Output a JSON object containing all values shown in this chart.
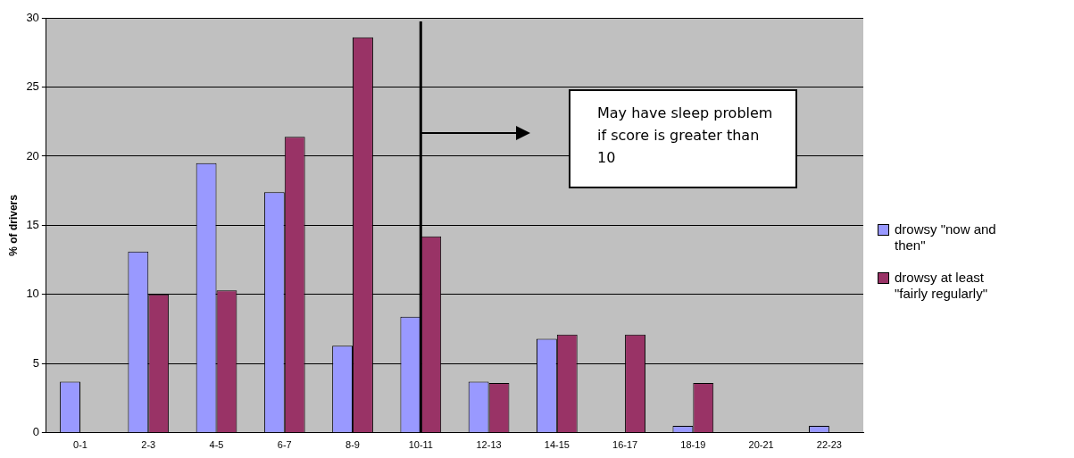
{
  "chart_data": {
    "type": "bar",
    "ylabel": "% of drivers",
    "categories": [
      "0-1",
      "2-3",
      "4-5",
      "6-7",
      "8-9",
      "10-11",
      "12-13",
      "14-15",
      "16-17",
      "18-19",
      "20-21",
      "22-23"
    ],
    "series": [
      {
        "name": "drowsy \"now and then\"",
        "color": "#9999ff",
        "values": [
          3.7,
          13.1,
          19.5,
          17.4,
          6.3,
          8.4,
          3.7,
          6.8,
          0,
          0.5,
          0,
          0.5
        ]
      },
      {
        "name": "drowsy at least \"fairly regularly\"",
        "color": "#993366",
        "values": [
          0,
          10,
          10.3,
          21.4,
          28.6,
          14.2,
          3.6,
          7.1,
          7.1,
          3.6,
          0,
          0
        ]
      }
    ],
    "ylim": [
      0,
      30
    ],
    "yticks": [
      0,
      5,
      10,
      15,
      20,
      25,
      30
    ],
    "grid": "y",
    "legend": "right",
    "ref_lines": [
      {
        "axis": "x",
        "value": "10-11",
        "color": "#000000"
      }
    ],
    "annotations": [
      "May have sleep problem if score is greater than 10"
    ]
  }
}
